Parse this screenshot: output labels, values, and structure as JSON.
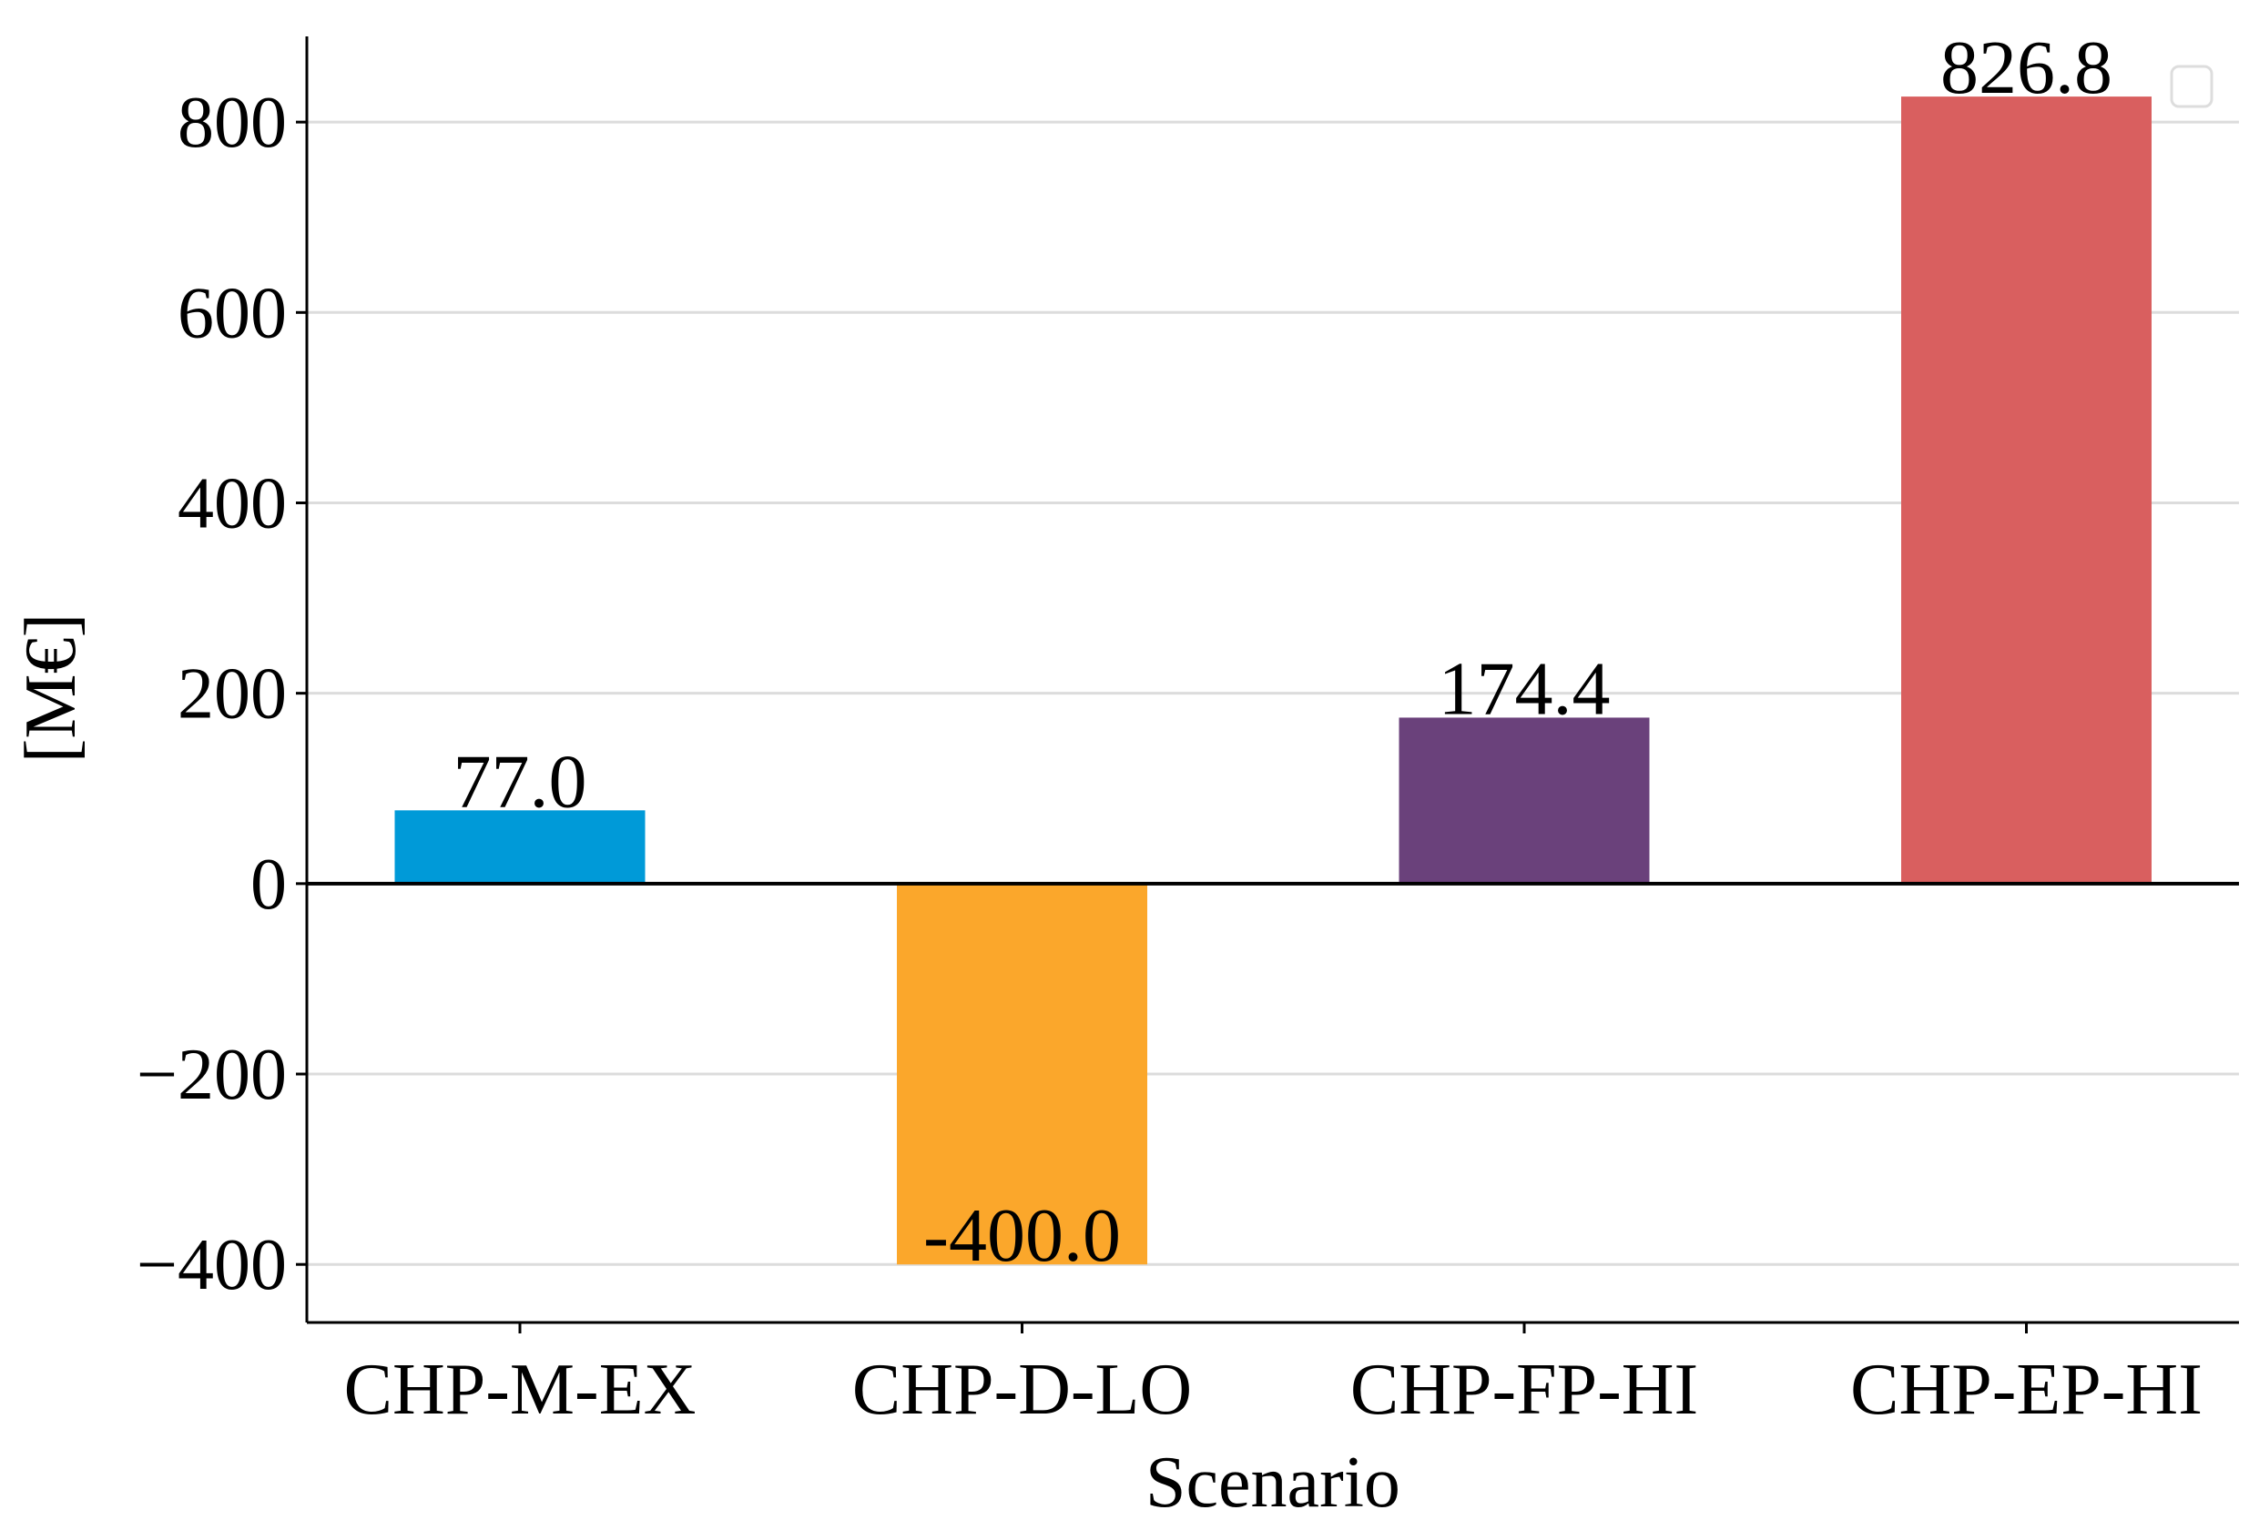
{
  "chart_data": {
    "type": "bar",
    "categories": [
      "CHP-M-EX",
      "CHP-D-LO",
      "CHP-FP-HI",
      "CHP-EP-HI"
    ],
    "values": [
      77.0,
      -400.0,
      174.4,
      826.8
    ],
    "value_labels": [
      "77.0",
      "-400.0",
      "174.4",
      "826.8"
    ],
    "colors": [
      "#009ad8",
      "#fba72b",
      "#6a417b",
      "#d95f5f"
    ],
    "x_label": "Scenario",
    "y_label": "[M€]",
    "ylim": [
      -461,
      890
    ],
    "yticks": [
      {
        "value": -400,
        "label": "−400"
      },
      {
        "value": -200,
        "label": "−200"
      },
      0,
      200,
      400,
      600,
      800
    ],
    "grid": true
  }
}
